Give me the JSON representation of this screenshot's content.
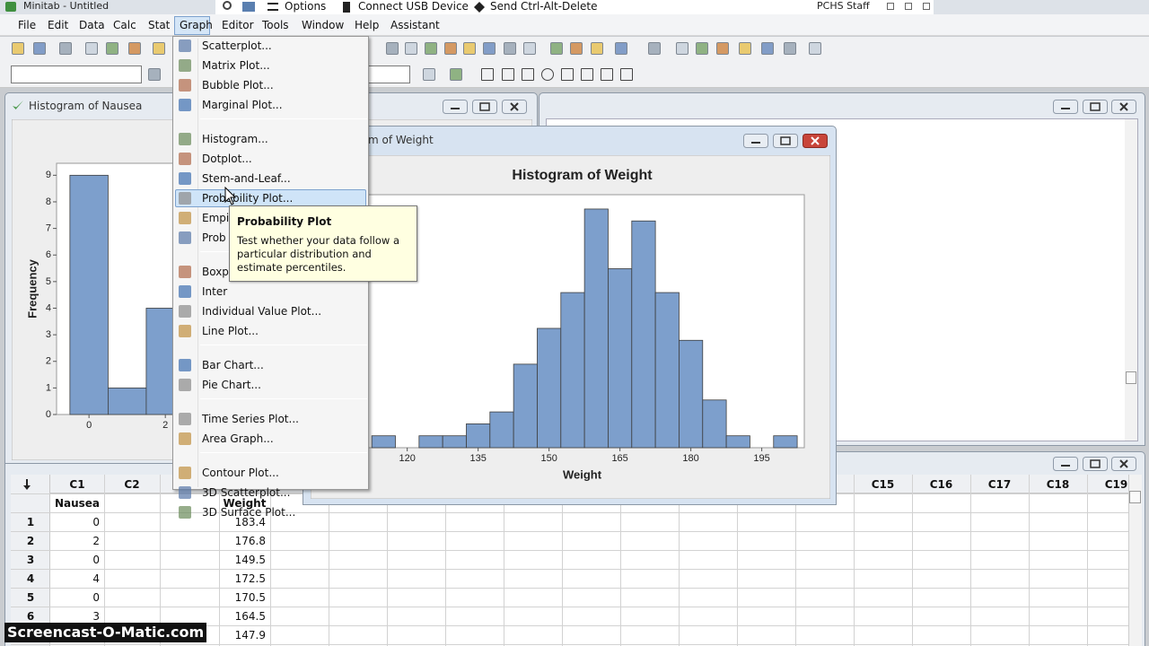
{
  "titlebar": {
    "title": "Minitab - Untitled",
    "user": "PCHS Staff"
  },
  "remote_bar": {
    "options": "Options",
    "connect": "Connect USB Device",
    "send": "Send Ctrl-Alt-Delete"
  },
  "menu_bar": [
    "File",
    "Edit",
    "Data",
    "Calc",
    "Stat",
    "Graph",
    "Editor",
    "Tools",
    "Window",
    "Help",
    "Assistant"
  ],
  "graph_menu": [
    [
      "Scatterplot...",
      "Matrix Plot...",
      "Bubble Plot...",
      "Marginal Plot..."
    ],
    [
      "Histogram...",
      "Dotplot...",
      "Stem-and-Leaf...",
      "Probability Plot...",
      "Empi",
      "Prob"
    ],
    [
      "Boxp",
      "Inter",
      "Individual Value Plot...",
      "Line Plot..."
    ],
    [
      "Bar Chart...",
      "Pie Chart..."
    ],
    [
      "Time Series Plot...",
      "Area Graph..."
    ],
    [
      "Contour Plot...",
      "3D Scatterplot...",
      "3D Surface Plot..."
    ]
  ],
  "tooltip": {
    "title": "Probability Plot",
    "text": "Test whether your data follow a particular distribution and estimate percentiles."
  },
  "nausea_window": {
    "title": "Histogram of Nausea",
    "chart_data": {
      "type": "histogram",
      "ylabel": "Frequency",
      "bins": [
        -0.5,
        0.5,
        1.5,
        2.5
      ],
      "values": [
        9,
        1,
        4
      ],
      "color": "#7d9fcc",
      "xlim": [
        -0.85,
        5.5
      ],
      "ylim": [
        0,
        9.45
      ],
      "xticks": [
        0,
        2
      ],
      "yticks": [
        0,
        1,
        2,
        3,
        4,
        5,
        6,
        7,
        8,
        9
      ]
    }
  },
  "weight_window": {
    "title": "m of Weight",
    "chart_data": {
      "type": "histogram",
      "title": "Histogram of Weight",
      "xlabel": "Weight",
      "bins": [
        112.5,
        117.5,
        122.5,
        127.5,
        132.5,
        137.5,
        142.5,
        147.5,
        152.5,
        157.5,
        162.5,
        167.5,
        172.5,
        177.5,
        182.5,
        187.5,
        192.5,
        197.5,
        202.5
      ],
      "values": [
        1,
        0,
        1,
        1,
        2,
        3,
        7,
        10,
        13,
        20,
        15,
        19,
        13,
        9,
        4,
        1,
        0,
        1
      ],
      "color": "#7d9fcc",
      "xlim": [
        110,
        204
      ],
      "ylim": [
        0,
        21.2
      ],
      "xticks": [
        120,
        135,
        150,
        165,
        180,
        195
      ]
    }
  },
  "worksheet": {
    "column_ids": [
      "C1",
      "C2",
      "C15",
      "C16",
      "C17",
      "C18",
      "C19"
    ],
    "row_numbers": [
      1,
      2,
      3,
      4,
      5,
      6,
      7
    ],
    "columns": [
      {
        "name": "Nausea",
        "values": [
          0,
          2,
          0,
          4,
          0,
          3
        ]
      },
      {
        "name": "Weight",
        "values": [
          183.4,
          176.8,
          149.5,
          172.5,
          170.5,
          164.5,
          147.9
        ]
      }
    ]
  },
  "watermark": "Screencast-O-Matic.com"
}
